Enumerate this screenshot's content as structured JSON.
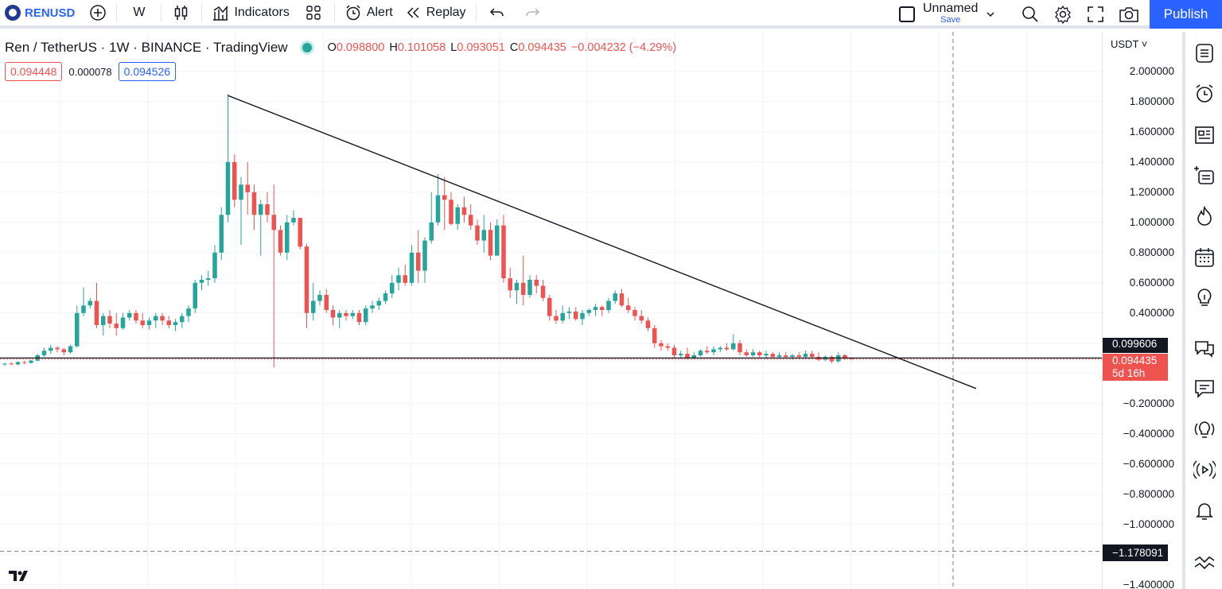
{
  "toolbar": {
    "symbol": "RENUSD",
    "interval": "W",
    "indicators_label": "Indicators",
    "alert_label": "Alert",
    "replay_label": "Replay",
    "layout_name": "Unnamed",
    "layout_save": "Save",
    "publish_label": "Publish"
  },
  "legend": {
    "title": "Ren / TetherUS · 1W · BINANCE · TradingView",
    "open_label": "O",
    "open": "0.098800",
    "high_label": "H",
    "high": "0.101058",
    "low_label": "L",
    "low": "0.093051",
    "close_label": "C",
    "close": "0.094435",
    "change": "−0.004232 (−4.29%)",
    "bid": "0.094448",
    "spread": "0.000078",
    "ask": "0.094526"
  },
  "axis": {
    "currency": "USDT",
    "labels": [
      "2.000000",
      "1.800000",
      "1.600000",
      "1.400000",
      "1.200000",
      "1.000000",
      "0.800000",
      "0.600000",
      "0.400000",
      "−0.200000",
      "−0.400000",
      "−0.600000",
      "−0.800000",
      "−1.000000",
      "−1.400000"
    ],
    "tag_upper": "0.099606",
    "tag_last_price": "0.094435",
    "tag_countdown": "5d 16h",
    "crosshair_price": "−1.178091"
  },
  "chart_data": {
    "type": "candlestick",
    "symbol": "RENUSD",
    "interval": "1W",
    "ylim": [
      -1.45,
      2.1
    ],
    "candles": [
      [
        0.06,
        0.07,
        0.05,
        0.065
      ],
      [
        0.065,
        0.075,
        0.055,
        0.06
      ],
      [
        0.06,
        0.08,
        0.055,
        0.075
      ],
      [
        0.075,
        0.085,
        0.06,
        0.07
      ],
      [
        0.07,
        0.09,
        0.065,
        0.085
      ],
      [
        0.085,
        0.13,
        0.08,
        0.12
      ],
      [
        0.12,
        0.17,
        0.11,
        0.15
      ],
      [
        0.15,
        0.19,
        0.13,
        0.17
      ],
      [
        0.17,
        0.18,
        0.14,
        0.16
      ],
      [
        0.16,
        0.17,
        0.12,
        0.14
      ],
      [
        0.14,
        0.19,
        0.13,
        0.18
      ],
      [
        0.18,
        0.45,
        0.17,
        0.4
      ],
      [
        0.4,
        0.57,
        0.38,
        0.45
      ],
      [
        0.45,
        0.5,
        0.43,
        0.48
      ],
      [
        0.48,
        0.6,
        0.3,
        0.32
      ],
      [
        0.32,
        0.4,
        0.25,
        0.38
      ],
      [
        0.38,
        0.42,
        0.3,
        0.33
      ],
      [
        0.33,
        0.4,
        0.25,
        0.3
      ],
      [
        0.3,
        0.4,
        0.29,
        0.37
      ],
      [
        0.37,
        0.42,
        0.35,
        0.4
      ],
      [
        0.4,
        0.42,
        0.33,
        0.35
      ],
      [
        0.35,
        0.4,
        0.3,
        0.32
      ],
      [
        0.32,
        0.37,
        0.29,
        0.35
      ],
      [
        0.35,
        0.4,
        0.3,
        0.38
      ],
      [
        0.38,
        0.4,
        0.32,
        0.35
      ],
      [
        0.35,
        0.38,
        0.3,
        0.32
      ],
      [
        0.32,
        0.36,
        0.28,
        0.34
      ],
      [
        0.34,
        0.4,
        0.3,
        0.38
      ],
      [
        0.38,
        0.45,
        0.34,
        0.43
      ],
      [
        0.43,
        0.62,
        0.4,
        0.6
      ],
      [
        0.6,
        0.65,
        0.55,
        0.62
      ],
      [
        0.62,
        0.68,
        0.58,
        0.63
      ],
      [
        0.63,
        0.85,
        0.6,
        0.8
      ],
      [
        0.8,
        1.1,
        0.75,
        1.05
      ],
      [
        1.05,
        1.85,
        1.0,
        1.4
      ],
      [
        1.4,
        1.45,
        1.1,
        1.15
      ],
      [
        1.15,
        1.3,
        0.85,
        1.25
      ],
      [
        1.25,
        1.4,
        1.05,
        1.2
      ],
      [
        1.2,
        1.25,
        0.95,
        1.05
      ],
      [
        1.05,
        1.15,
        0.78,
        1.12
      ],
      [
        1.12,
        1.2,
        1.0,
        1.05
      ],
      [
        1.05,
        1.25,
        0.04,
        0.95
      ],
      [
        0.95,
        0.98,
        0.78,
        0.8
      ],
      [
        0.8,
        1.05,
        0.75,
        1.0
      ],
      [
        1.0,
        1.08,
        0.98,
        1.03
      ],
      [
        1.03,
        1.0,
        0.82,
        0.84
      ],
      [
        0.84,
        0.86,
        0.3,
        0.4
      ],
      [
        0.4,
        0.6,
        0.35,
        0.48
      ],
      [
        0.48,
        0.55,
        0.45,
        0.52
      ],
      [
        0.52,
        0.56,
        0.4,
        0.42
      ],
      [
        0.42,
        0.45,
        0.32,
        0.37
      ],
      [
        0.37,
        0.42,
        0.3,
        0.4
      ],
      [
        0.4,
        0.42,
        0.35,
        0.38
      ],
      [
        0.38,
        0.42,
        0.36,
        0.4
      ],
      [
        0.4,
        0.42,
        0.32,
        0.34
      ],
      [
        0.34,
        0.45,
        0.32,
        0.43
      ],
      [
        0.43,
        0.48,
        0.4,
        0.45
      ],
      [
        0.45,
        0.5,
        0.42,
        0.48
      ],
      [
        0.48,
        0.55,
        0.46,
        0.53
      ],
      [
        0.53,
        0.65,
        0.5,
        0.6
      ],
      [
        0.6,
        0.7,
        0.55,
        0.65
      ],
      [
        0.65,
        0.72,
        0.58,
        0.6
      ],
      [
        0.6,
        0.85,
        0.58,
        0.8
      ],
      [
        0.8,
        0.95,
        0.6,
        0.68
      ],
      [
        0.68,
        0.9,
        0.6,
        0.88
      ],
      [
        0.88,
        1.2,
        0.86,
        1.0
      ],
      [
        1.0,
        1.32,
        0.98,
        1.18
      ],
      [
        1.18,
        1.3,
        0.95,
        1.15
      ],
      [
        1.15,
        1.2,
        0.98,
        0.99
      ],
      [
        0.99,
        1.12,
        0.95,
        1.1
      ],
      [
        1.1,
        1.17,
        1.0,
        1.05
      ],
      [
        1.05,
        1.12,
        0.95,
        0.98
      ],
      [
        0.98,
        1.02,
        0.85,
        0.88
      ],
      [
        0.88,
        1.05,
        0.8,
        0.95
      ],
      [
        0.95,
        1.0,
        0.75,
        0.78
      ],
      [
        0.78,
        1.02,
        0.8,
        0.98
      ],
      [
        0.98,
        1.05,
        0.6,
        0.63
      ],
      [
        0.63,
        0.7,
        0.5,
        0.55
      ],
      [
        0.55,
        0.62,
        0.46,
        0.6
      ],
      [
        0.6,
        0.78,
        0.45,
        0.52
      ],
      [
        0.52,
        0.65,
        0.5,
        0.62
      ],
      [
        0.62,
        0.65,
        0.53,
        0.58
      ],
      [
        0.58,
        0.62,
        0.48,
        0.5
      ],
      [
        0.5,
        0.52,
        0.35,
        0.38
      ],
      [
        0.38,
        0.42,
        0.33,
        0.35
      ],
      [
        0.35,
        0.45,
        0.33,
        0.4
      ],
      [
        0.4,
        0.44,
        0.36,
        0.41
      ],
      [
        0.41,
        0.44,
        0.35,
        0.36
      ],
      [
        0.36,
        0.42,
        0.32,
        0.4
      ],
      [
        0.4,
        0.43,
        0.38,
        0.42
      ],
      [
        0.42,
        0.46,
        0.38,
        0.44
      ],
      [
        0.44,
        0.45,
        0.38,
        0.42
      ],
      [
        0.42,
        0.5,
        0.4,
        0.48
      ],
      [
        0.48,
        0.55,
        0.46,
        0.53
      ],
      [
        0.53,
        0.56,
        0.44,
        0.45
      ],
      [
        0.45,
        0.5,
        0.4,
        0.42
      ],
      [
        0.42,
        0.44,
        0.35,
        0.38
      ],
      [
        0.38,
        0.42,
        0.33,
        0.35
      ],
      [
        0.35,
        0.37,
        0.28,
        0.3
      ],
      [
        0.3,
        0.32,
        0.17,
        0.2
      ],
      [
        0.2,
        0.22,
        0.15,
        0.18
      ],
      [
        0.18,
        0.2,
        0.15,
        0.17
      ],
      [
        0.17,
        0.19,
        0.1,
        0.12
      ],
      [
        0.12,
        0.15,
        0.1,
        0.13
      ],
      [
        0.13,
        0.17,
        0.09,
        0.1
      ],
      [
        0.1,
        0.14,
        0.09,
        0.12
      ],
      [
        0.12,
        0.16,
        0.11,
        0.15
      ],
      [
        0.15,
        0.18,
        0.13,
        0.14
      ],
      [
        0.14,
        0.18,
        0.12,
        0.16
      ],
      [
        0.16,
        0.18,
        0.14,
        0.17
      ],
      [
        0.17,
        0.2,
        0.15,
        0.16
      ],
      [
        0.16,
        0.26,
        0.15,
        0.2
      ],
      [
        0.2,
        0.22,
        0.12,
        0.14
      ],
      [
        0.14,
        0.16,
        0.11,
        0.12
      ],
      [
        0.12,
        0.16,
        0.11,
        0.14
      ],
      [
        0.14,
        0.15,
        0.1,
        0.12
      ],
      [
        0.12,
        0.15,
        0.1,
        0.13
      ],
      [
        0.13,
        0.14,
        0.1,
        0.11
      ],
      [
        0.11,
        0.14,
        0.1,
        0.12
      ],
      [
        0.12,
        0.14,
        0.1,
        0.11
      ],
      [
        0.11,
        0.13,
        0.09,
        0.12
      ],
      [
        0.12,
        0.14,
        0.1,
        0.11
      ],
      [
        0.11,
        0.15,
        0.1,
        0.13
      ],
      [
        0.13,
        0.15,
        0.1,
        0.11
      ],
      [
        0.11,
        0.14,
        0.08,
        0.09
      ],
      [
        0.09,
        0.12,
        0.08,
        0.11
      ],
      [
        0.11,
        0.12,
        0.07,
        0.08
      ],
      [
        0.08,
        0.14,
        0.07,
        0.12
      ],
      [
        0.12,
        0.13,
        0.09,
        0.1
      ],
      [
        0.0988,
        0.101058,
        0.093051,
        0.094435
      ]
    ],
    "trendline": {
      "from": [
        34,
        1.84
      ],
      "to": [
        148,
        -0.1
      ]
    },
    "horizontal_line": 0.094435,
    "colors": {
      "up": "#26a69a",
      "down": "#ef5350",
      "trendline": "#131722",
      "grid": "#f0f3fa"
    }
  },
  "sidebar": [
    "watchlist-icon",
    "alarm-clock-icon",
    "news-icon",
    "add-list-icon",
    "hotlist-icon",
    "calendar-icon",
    "ideas-icon",
    "chat-icon",
    "comments-icon",
    "idea-stream-icon",
    "streams-icon",
    "notifications-icon",
    "chart-pattern-icon"
  ]
}
